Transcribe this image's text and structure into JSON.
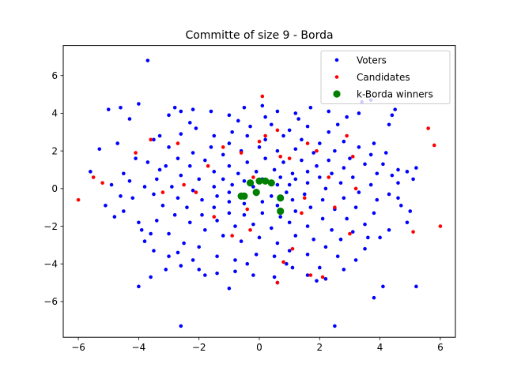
{
  "chart_data": {
    "type": "scatter",
    "title": "Committe of size 9 - Borda",
    "xlabel": "",
    "ylabel": "",
    "xlim": [
      -6.5,
      6.5
    ],
    "ylim": [
      -7.9,
      7.6
    ],
    "xticks": [
      -6,
      -4,
      -2,
      0,
      2,
      4,
      6
    ],
    "yticks": [
      -6,
      -4,
      -2,
      0,
      2,
      4,
      6
    ],
    "legend_position": "top-right",
    "series": [
      {
        "name": "Voters",
        "color": "#0000ff",
        "marker": "small-dot",
        "points": [
          [
            -3.7,
            6.8
          ],
          [
            -2.6,
            -7.3
          ],
          [
            2.5,
            -7.3
          ],
          [
            -4.6,
            4.3
          ],
          [
            -5.0,
            4.2
          ],
          [
            -4.0,
            4.5
          ],
          [
            -3.5,
            2.6
          ],
          [
            -4.3,
            3.7
          ],
          [
            -5.3,
            2.1
          ],
          [
            -3.0,
            3.9
          ],
          [
            -2.6,
            4.1
          ],
          [
            -2.2,
            4.2
          ],
          [
            -1.6,
            4.1
          ],
          [
            -1.0,
            3.9
          ],
          [
            -0.5,
            4.3
          ],
          [
            0.1,
            4.4
          ],
          [
            0.6,
            4.1
          ],
          [
            1.2,
            4.0
          ],
          [
            1.7,
            4.3
          ],
          [
            2.3,
            4.1
          ],
          [
            2.9,
            3.8
          ],
          [
            3.4,
            4.6
          ],
          [
            3.7,
            4.7
          ],
          [
            4.4,
            3.9
          ],
          [
            4.3,
            3.4
          ],
          [
            -3.0,
            2.2
          ],
          [
            -3.3,
            1.0
          ],
          [
            -3.8,
            0.1
          ],
          [
            -4.2,
            -0.5
          ],
          [
            -4.5,
            -1.2
          ],
          [
            -4.8,
            -1.5
          ],
          [
            -5.1,
            -0.9
          ],
          [
            -4.5,
            0.8
          ],
          [
            -4.1,
            1.6
          ],
          [
            -2.6,
            2.9
          ],
          [
            -2.1,
            3.2
          ],
          [
            -1.5,
            2.8
          ],
          [
            -0.9,
            3.0
          ],
          [
            -0.3,
            3.3
          ],
          [
            0.4,
            3.4
          ],
          [
            1.0,
            3.1
          ],
          [
            1.6,
            3.3
          ],
          [
            2.3,
            3.0
          ],
          [
            2.8,
            2.5
          ],
          [
            3.3,
            2.2
          ],
          [
            3.7,
            1.8
          ],
          [
            4.1,
            1.3
          ],
          [
            4.6,
            1.0
          ],
          [
            4.9,
            0.9
          ],
          [
            5.1,
            0.5
          ],
          [
            4.6,
            0.3
          ],
          [
            4.3,
            -0.3
          ],
          [
            4.7,
            -0.9
          ],
          [
            5.0,
            -1.2
          ],
          [
            4.9,
            -1.8
          ],
          [
            4.3,
            -2.2
          ],
          [
            4.0,
            -2.6
          ],
          [
            3.5,
            -3.2
          ],
          [
            3.2,
            -3.8
          ],
          [
            2.8,
            -4.3
          ],
          [
            2.2,
            -4.8
          ],
          [
            1.6,
            -4.6
          ],
          [
            1.1,
            -4.2
          ],
          [
            0.5,
            -4.7
          ],
          [
            -0.2,
            -4.6
          ],
          [
            -0.8,
            -4.4
          ],
          [
            -1.4,
            -4.5
          ],
          [
            -2.0,
            -4.3
          ],
          [
            -2.6,
            -4.1
          ],
          [
            -3.0,
            -3.6
          ],
          [
            -3.5,
            -3.3
          ],
          [
            -3.8,
            -2.8
          ],
          [
            -3.9,
            -2.2
          ],
          [
            -3.4,
            -1.7
          ],
          [
            -3.0,
            -2.4
          ],
          [
            -2.5,
            -2.9
          ],
          [
            -2.0,
            -3.1
          ],
          [
            -1.4,
            -3.6
          ],
          [
            -0.8,
            -3.8
          ],
          [
            -0.1,
            -3.5
          ],
          [
            0.5,
            -3.6
          ],
          [
            1.0,
            -3.3
          ],
          [
            1.6,
            -3.5
          ],
          [
            2.2,
            -3.1
          ],
          [
            2.7,
            -2.7
          ],
          [
            3.1,
            -2.3
          ],
          [
            3.5,
            -1.9
          ],
          [
            3.8,
            -1.3
          ],
          [
            3.9,
            -0.6
          ],
          [
            3.7,
            0.2
          ],
          [
            3.9,
            0.8
          ],
          [
            3.5,
            1.3
          ],
          [
            3.0,
            1.6
          ],
          [
            2.5,
            2.0
          ],
          [
            2.0,
            2.4
          ],
          [
            1.4,
            2.6
          ],
          [
            0.8,
            2.8
          ],
          [
            0.2,
            2.6
          ],
          [
            -0.4,
            2.8
          ],
          [
            -1.0,
            2.4
          ],
          [
            -1.6,
            2.2
          ],
          [
            -2.2,
            1.9
          ],
          [
            -2.7,
            1.6
          ],
          [
            -3.1,
            1.2
          ],
          [
            -3.4,
            0.5
          ],
          [
            -3.5,
            -0.3
          ],
          [
            -3.2,
            -0.9
          ],
          [
            -2.8,
            -1.4
          ],
          [
            -2.3,
            -1.8
          ],
          [
            -1.8,
            -2.2
          ],
          [
            -1.2,
            -2.5
          ],
          [
            -0.6,
            -2.8
          ],
          [
            0.0,
            -2.6
          ],
          [
            0.6,
            -2.9
          ],
          [
            1.2,
            -2.5
          ],
          [
            1.8,
            -2.7
          ],
          [
            2.4,
            -2.2
          ],
          [
            2.9,
            -1.6
          ],
          [
            3.2,
            -1.0
          ],
          [
            3.3,
            -0.2
          ],
          [
            3.1,
            0.6
          ],
          [
            2.8,
            1.1
          ],
          [
            2.3,
            1.5
          ],
          [
            1.8,
            1.9
          ],
          [
            1.2,
            2.1
          ],
          [
            0.6,
            2.0
          ],
          [
            0.0,
            2.2
          ],
          [
            -0.6,
            2.0
          ],
          [
            -1.2,
            1.8
          ],
          [
            -1.8,
            1.5
          ],
          [
            -2.3,
            1.2
          ],
          [
            -2.6,
            0.7
          ],
          [
            -2.9,
            0.1
          ],
          [
            -2.7,
            -0.5
          ],
          [
            -2.4,
            -1.0
          ],
          [
            -1.9,
            -1.4
          ],
          [
            -1.4,
            -1.7
          ],
          [
            -0.8,
            -2.0
          ],
          [
            -0.2,
            -1.9
          ],
          [
            0.4,
            -2.1
          ],
          [
            1.0,
            -1.8
          ],
          [
            1.6,
            -2.0
          ],
          [
            2.1,
            -1.6
          ],
          [
            2.5,
            -1.1
          ],
          [
            2.8,
            -0.5
          ],
          [
            2.7,
            0.3
          ],
          [
            2.4,
            0.8
          ],
          [
            1.9,
            1.2
          ],
          [
            1.4,
            1.5
          ],
          [
            0.8,
            1.4
          ],
          [
            0.2,
            1.6
          ],
          [
            -0.4,
            1.4
          ],
          [
            -1.0,
            1.2
          ],
          [
            -1.5,
            0.9
          ],
          [
            -2.0,
            0.5
          ],
          [
            -2.2,
            -0.1
          ],
          [
            -1.9,
            -0.6
          ],
          [
            -1.5,
            -1.0
          ],
          [
            -1.0,
            -1.3
          ],
          [
            -0.5,
            -1.4
          ],
          [
            0.1,
            -1.3
          ],
          [
            0.7,
            -1.5
          ],
          [
            1.2,
            -1.2
          ],
          [
            1.7,
            -1.0
          ],
          [
            2.1,
            -0.6
          ],
          [
            2.2,
            0.0
          ],
          [
            2.0,
            0.6
          ],
          [
            1.6,
            0.9
          ],
          [
            1.1,
            0.8
          ],
          [
            0.5,
            1.0
          ],
          [
            -0.1,
            0.9
          ],
          [
            -0.7,
            0.8
          ],
          [
            -1.2,
            0.5
          ],
          [
            -1.5,
            0.1
          ],
          [
            -1.4,
            -0.4
          ],
          [
            -1.0,
            -0.7
          ],
          [
            -0.5,
            -0.8
          ],
          [
            0.1,
            -0.7
          ],
          [
            0.6,
            -0.9
          ],
          [
            1.1,
            -0.6
          ],
          [
            1.5,
            -0.3
          ],
          [
            1.6,
            0.3
          ],
          [
            1.2,
            0.5
          ],
          [
            0.7,
            0.6
          ],
          [
            0.1,
            0.5
          ],
          [
            -0.5,
            0.4
          ],
          [
            -0.9,
            0.2
          ],
          [
            -1.0,
            -0.2
          ],
          [
            -0.6,
            -0.4
          ],
          [
            -0.1,
            -0.3
          ],
          [
            0.4,
            -0.4
          ],
          [
            0.9,
            -0.2
          ],
          [
            1.0,
            0.2
          ],
          [
            0.6,
            0.2
          ],
          [
            -0.2,
            0.1
          ],
          [
            -4.0,
            -5.2
          ],
          [
            -1.0,
            -5.3
          ],
          [
            4.1,
            -5.2
          ],
          [
            5.2,
            -5.2
          ],
          [
            3.8,
            -5.8
          ],
          [
            -3.6,
            -4.7
          ],
          [
            4.5,
            4.2
          ],
          [
            -5.6,
            0.9
          ],
          [
            -4.7,
            2.4
          ],
          [
            5.2,
            1.1
          ],
          [
            -2.8,
            4.3
          ],
          [
            0.6,
            -5.0
          ],
          [
            1.9,
            -4.9
          ],
          [
            -3.1,
            -4.3
          ],
          [
            3.3,
            4.0
          ],
          [
            -1.8,
            -4.6
          ],
          [
            2.6,
            3.4
          ],
          [
            -2.3,
            3.5
          ],
          [
            1.3,
            3.7
          ],
          [
            -0.7,
            3.6
          ],
          [
            0.2,
            3.8
          ],
          [
            -4.9,
            0.2
          ],
          [
            -4.6,
            -0.4
          ],
          [
            -4.3,
            0.4
          ],
          [
            4.6,
            -0.5
          ],
          [
            4.4,
            0.7
          ],
          [
            4.2,
            1.9
          ],
          [
            -4.0,
            -1.8
          ],
          [
            -3.6,
            -2.4
          ],
          [
            -3.3,
            2.8
          ],
          [
            -3.7,
            1.4
          ],
          [
            3.6,
            -2.6
          ],
          [
            3.8,
            2.4
          ],
          [
            2.0,
            -4.2
          ],
          [
            -2.2,
            -3.8
          ],
          [
            -0.4,
            -4.0
          ],
          [
            0.9,
            -4.0
          ],
          [
            2.6,
            -3.6
          ],
          [
            -2.7,
            -3.4
          ]
        ]
      },
      {
        "name": "Candidates",
        "color": "#ff0000",
        "marker": "small-dot",
        "points": [
          [
            -6.0,
            -0.6
          ],
          [
            6.0,
            -2.0
          ],
          [
            5.8,
            2.3
          ],
          [
            5.6,
            3.2
          ],
          [
            5.1,
            -2.3
          ],
          [
            -5.2,
            0.3
          ],
          [
            -5.5,
            0.6
          ],
          [
            -4.1,
            1.9
          ],
          [
            -3.6,
            2.6
          ],
          [
            -2.7,
            2.4
          ],
          [
            -2.5,
            0.2
          ],
          [
            -3.2,
            -0.2
          ],
          [
            -1.7,
            1.2
          ],
          [
            -1.5,
            -1.5
          ],
          [
            -0.9,
            -2.5
          ],
          [
            -0.6,
            1.9
          ],
          [
            0.0,
            2.5
          ],
          [
            0.2,
            2.8
          ],
          [
            0.6,
            3.1
          ],
          [
            0.7,
            1.7
          ],
          [
            1.0,
            1.6
          ],
          [
            1.6,
            2.4
          ],
          [
            2.3,
            0.6
          ],
          [
            2.9,
            2.8
          ],
          [
            3.1,
            1.7
          ],
          [
            3.2,
            0.0
          ],
          [
            3.0,
            -2.4
          ],
          [
            2.5,
            -1.0
          ],
          [
            1.4,
            -1.3
          ],
          [
            1.1,
            -3.2
          ],
          [
            0.8,
            -3.9
          ],
          [
            2.1,
            -4.7
          ],
          [
            1.7,
            -4.6
          ],
          [
            0.6,
            -5.0
          ],
          [
            -0.3,
            -2.2
          ],
          [
            -2.1,
            -0.2
          ],
          [
            -1.2,
            2.2
          ],
          [
            0.1,
            4.9
          ],
          [
            1.9,
            2.0
          ],
          [
            -0.2,
            0.6
          ],
          [
            1.5,
            -0.5
          ],
          [
            -0.4,
            -1.1
          ]
        ]
      },
      {
        "name": "k-Borda winners",
        "color": "#008000",
        "marker": "large-dot",
        "points": [
          [
            -0.5,
            -0.4
          ],
          [
            -0.3,
            0.3
          ],
          [
            -0.1,
            -0.2
          ],
          [
            0.0,
            0.4
          ],
          [
            0.2,
            0.4
          ],
          [
            0.4,
            0.3
          ],
          [
            0.7,
            -0.5
          ],
          [
            0.7,
            -1.2
          ],
          [
            -0.6,
            -0.4
          ]
        ]
      }
    ]
  }
}
